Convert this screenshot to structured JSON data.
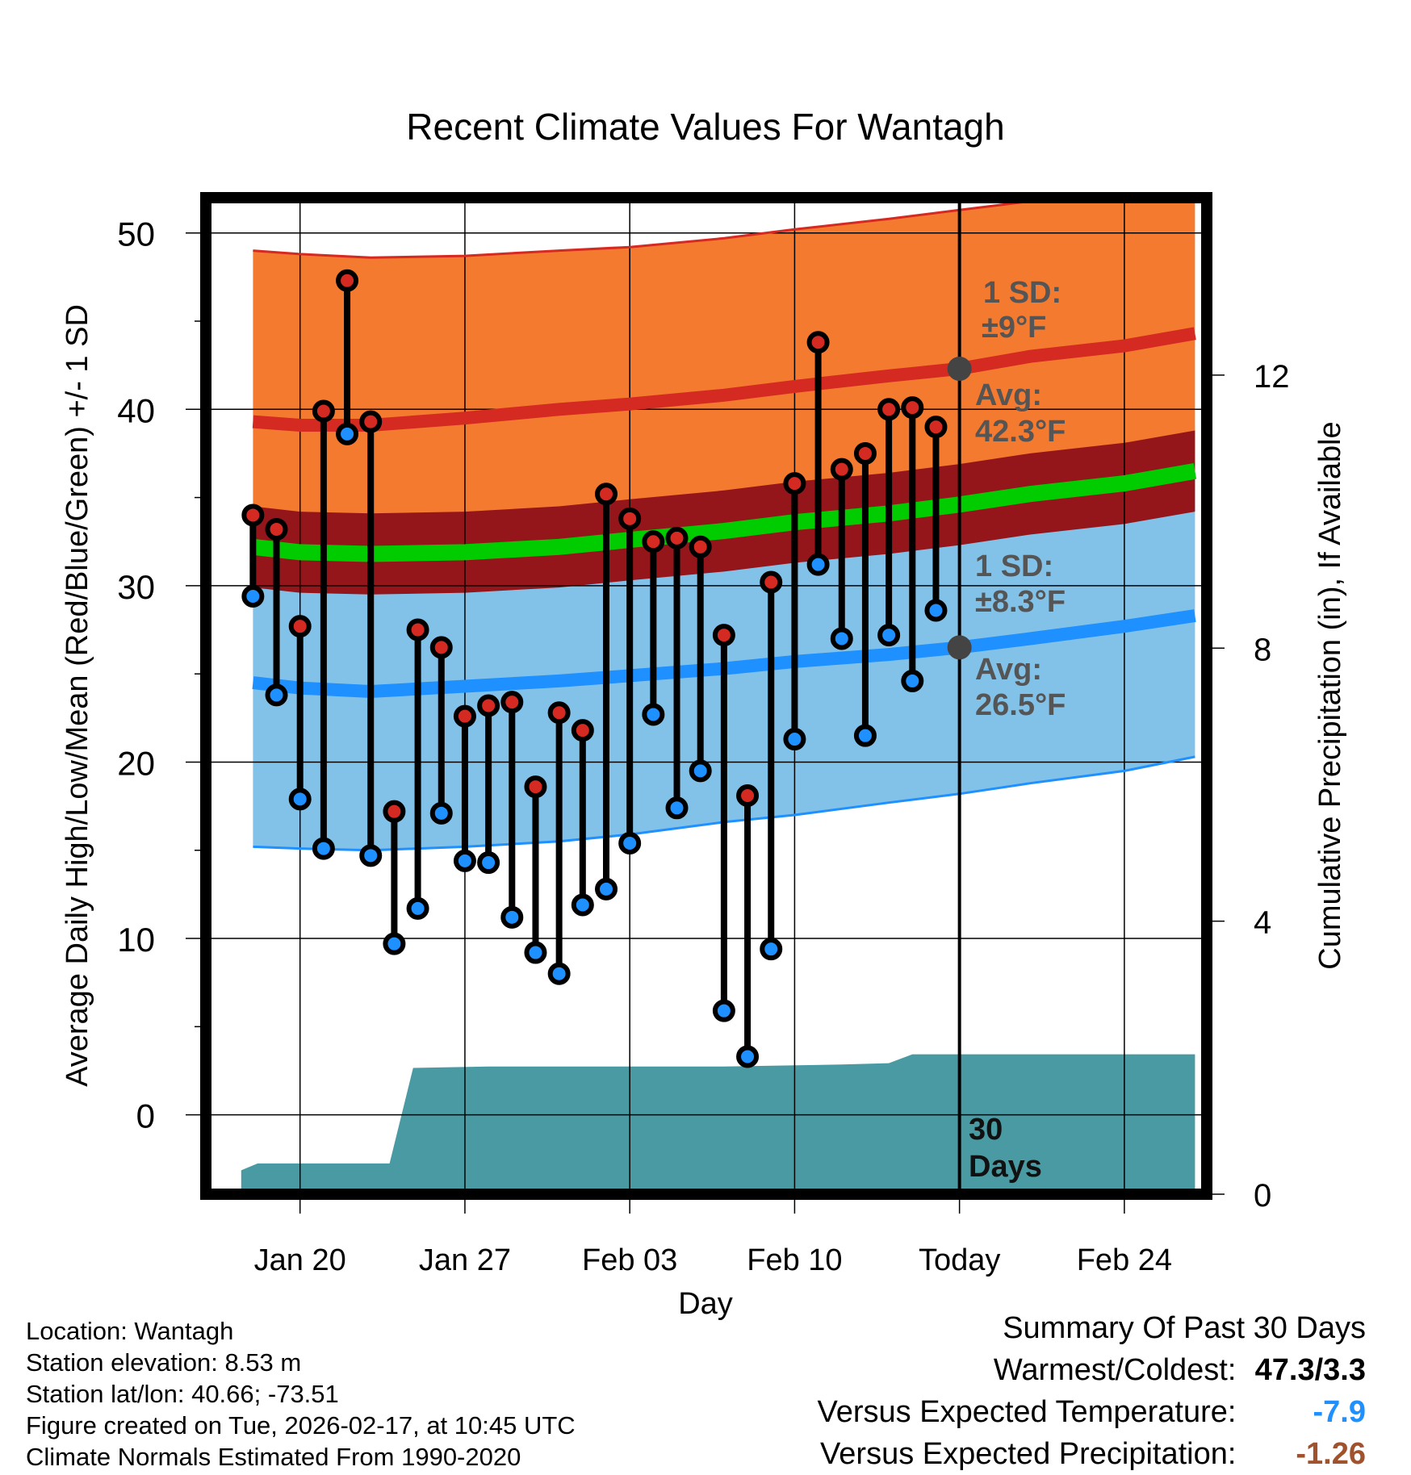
{
  "chart_data": {
    "type": "line",
    "title": "Recent Climate Values For Wantagh",
    "xlabel": "Day",
    "ylabel": "Average Daily High/Low/Mean (Red/Blue/Green) +/- 1 SD",
    "ylabel_right": "Cumulative Precipitation (in), If Available",
    "x_range_days": [
      -32,
      10.5
    ],
    "ylim": [
      -4.5,
      52
    ],
    "yticks": [
      0,
      10,
      20,
      30,
      40,
      50
    ],
    "ylim_right": [
      0,
      14.6
    ],
    "yticks_right": [
      0,
      4,
      8,
      12
    ],
    "x_ticks": [
      {
        "day": -28,
        "label": "Jan 20"
      },
      {
        "day": -21,
        "label": "Jan 27"
      },
      {
        "day": -14,
        "label": "Feb 03"
      },
      {
        "day": -7,
        "label": "Feb 10"
      },
      {
        "day": 0,
        "label": "Today"
      },
      {
        "day": 7,
        "label": "Feb 24"
      }
    ],
    "colors": {
      "high_band": "#f47a2f",
      "high_line": "#d42a22",
      "low_band": "#83c2e8",
      "low_line": "#1e90ff",
      "mean_line": "#00cc00",
      "mean_band": "#95161a",
      "high_marker": "#d42a22",
      "low_marker": "#1e90ff",
      "precip": "#4a9aa3",
      "annotation": "#555555"
    },
    "normal_days": [
      -30,
      -28,
      -25,
      -21,
      -17,
      -14,
      -10,
      -7,
      -3,
      0,
      3,
      7,
      10
    ],
    "normal_high": [
      39.3,
      39.1,
      39.1,
      39.5,
      40.0,
      40.3,
      40.8,
      41.3,
      41.9,
      42.3,
      43.0,
      43.6,
      44.3
    ],
    "normal_high_sd_upper": [
      49.0,
      48.8,
      48.6,
      48.7,
      49.0,
      49.2,
      49.7,
      50.2,
      50.8,
      51.3,
      51.8,
      52.5,
      53.3
    ],
    "normal_low": [
      24.5,
      24.2,
      24.0,
      24.3,
      24.6,
      24.9,
      25.3,
      25.7,
      26.1,
      26.5,
      27.0,
      27.7,
      28.3
    ],
    "normal_low_sd_lower": [
      15.2,
      15.1,
      15.0,
      15.2,
      15.5,
      15.9,
      16.6,
      17.0,
      17.7,
      18.2,
      18.8,
      19.5,
      20.3
    ],
    "normal_mean": [
      32.2,
      31.9,
      31.8,
      31.9,
      32.2,
      32.6,
      33.1,
      33.6,
      34.1,
      34.6,
      35.2,
      35.8,
      36.5
    ],
    "days": [
      -30,
      -29,
      -28,
      -27,
      -26,
      -25,
      -24,
      -23,
      -22,
      -21,
      -20,
      -19,
      -18,
      -17,
      -16,
      -15,
      -14,
      -13,
      -12,
      -11,
      -10,
      -9,
      -8,
      -7,
      -6,
      -5,
      -4,
      -3,
      -2,
      -1
    ],
    "highs": [
      34.0,
      33.2,
      27.7,
      39.9,
      47.3,
      39.3,
      17.2,
      27.5,
      26.5,
      22.6,
      23.2,
      23.4,
      18.6,
      22.8,
      21.8,
      35.2,
      33.8,
      32.5,
      32.7,
      32.2,
      27.2,
      18.1,
      30.2,
      35.8,
      43.8,
      36.6,
      37.5,
      40.0,
      40.1,
      39.0
    ],
    "lows": [
      29.4,
      23.8,
      17.9,
      15.1,
      38.6,
      14.7,
      9.7,
      11.7,
      17.1,
      14.4,
      14.3,
      11.2,
      9.2,
      8.0,
      11.9,
      12.8,
      15.4,
      22.7,
      17.4,
      19.5,
      5.9,
      3.3,
      9.4,
      21.3,
      31.2,
      27.0,
      21.5,
      27.2,
      24.6,
      28.6
    ],
    "precip_days": [
      -30.5,
      -29.8,
      -24.2,
      -23.2,
      -20,
      -15,
      -10,
      -5,
      -3,
      -2,
      0,
      10
    ],
    "precip_cumulative": [
      0.35,
      0.45,
      0.45,
      1.85,
      1.87,
      1.87,
      1.87,
      1.9,
      1.92,
      2.05,
      2.05,
      2.05
    ],
    "annotations": {
      "high_sd_label": "1 SD:",
      "high_sd_value": "±9°F",
      "high_avg_label": "Avg:",
      "high_avg_value": "42.3°F",
      "low_sd_label": "1 SD:",
      "low_sd_value": "±8.3°F",
      "low_avg_label": "Avg:",
      "low_avg_value": "26.5°F",
      "period_number": "30",
      "period_unit": "Days"
    }
  },
  "station": {
    "location": "Location: Wantagh",
    "elevation": "Station elevation: 8.53 m",
    "latlon": "Station lat/lon: 40.66; -73.51",
    "created": "Figure created on Tue, 2026-02-17, at 10:45 UTC",
    "normals": "Climate Normals Estimated From 1990-2020"
  },
  "summary": {
    "title": "Summary Of Past 30 Days",
    "warmest_coldest_label": "Warmest/Coldest:",
    "warmest_coldest_value": "47.3/3.3",
    "temp_label": "Versus Expected Temperature:",
    "temp_value": "-7.9",
    "temp_color": "#1e90ff",
    "precip_label": "Versus Expected Precipitation:",
    "precip_value": "-1.26",
    "precip_color": "#a0522d"
  }
}
